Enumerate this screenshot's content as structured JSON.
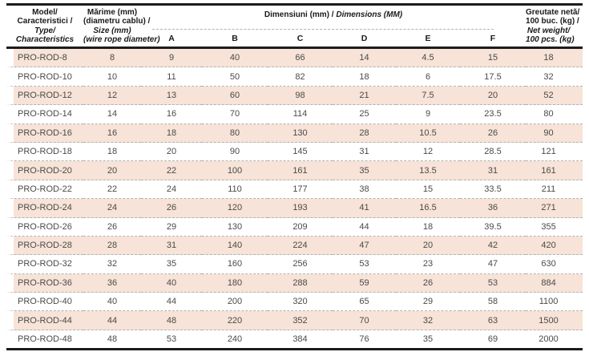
{
  "table": {
    "headers": {
      "model": {
        "l1": "Model/",
        "l2": "Caracteristici /",
        "l3": "Type/",
        "l4": "Characteristics"
      },
      "size": {
        "l1": "Mărime (mm)",
        "l2": "(diametru cablu) /",
        "l3": "Size (mm)",
        "l4": "(wire rope diameter)"
      },
      "dimensions": {
        "ro": "Dimensiuni (mm) / ",
        "en": "Dimensions (MM)"
      },
      "weight": {
        "l1": "Greutate netă/",
        "l2": "100 buc. (kg) /",
        "l3": "Net weight/",
        "l4": "100 pcs. (kg)"
      },
      "sub_columns": [
        "A",
        "B",
        "C",
        "D",
        "E",
        "F"
      ]
    },
    "rows": [
      [
        "PRO-ROD-8",
        "8",
        "9",
        "40",
        "66",
        "14",
        "4.5",
        "15",
        "18"
      ],
      [
        "PRO-ROD-10",
        "10",
        "11",
        "50",
        "82",
        "18",
        "6",
        "17.5",
        "32"
      ],
      [
        "PRO-ROD-12",
        "12",
        "13",
        "60",
        "98",
        "21",
        "7.5",
        "20",
        "52"
      ],
      [
        "PRO-ROD-14",
        "14",
        "16",
        "70",
        "114",
        "25",
        "9",
        "23.5",
        "80"
      ],
      [
        "PRO-ROD-16",
        "16",
        "18",
        "80",
        "130",
        "28",
        "10.5",
        "26",
        "90"
      ],
      [
        "PRO-ROD-18",
        "18",
        "20",
        "90",
        "145",
        "31",
        "12",
        "28.5",
        "121"
      ],
      [
        "PRO-ROD-20",
        "20",
        "22",
        "100",
        "161",
        "35",
        "13.5",
        "31",
        "161"
      ],
      [
        "PRO-ROD-22",
        "22",
        "24",
        "110",
        "177",
        "38",
        "15",
        "33.5",
        "211"
      ],
      [
        "PRO-ROD-24",
        "24",
        "26",
        "120",
        "193",
        "41",
        "16.5",
        "36",
        "271"
      ],
      [
        "PRO-ROD-26",
        "26",
        "29",
        "130",
        "209",
        "44",
        "18",
        "39.5",
        "355"
      ],
      [
        "PRO-ROD-28",
        "28",
        "31",
        "140",
        "224",
        "47",
        "20",
        "42",
        "420"
      ],
      [
        "PRO-ROD-32",
        "32",
        "35",
        "160",
        "256",
        "53",
        "23",
        "47",
        "630"
      ],
      [
        "PRO-ROD-36",
        "36",
        "40",
        "180",
        "288",
        "59",
        "26",
        "53",
        "884"
      ],
      [
        "PRO-ROD-40",
        "40",
        "44",
        "200",
        "320",
        "65",
        "29",
        "58",
        "1100"
      ],
      [
        "PRO-ROD-44",
        "44",
        "48",
        "220",
        "352",
        "70",
        "32",
        "63",
        "1500"
      ],
      [
        "PRO-ROD-48",
        "48",
        "53",
        "240",
        "384",
        "76",
        "35",
        "69",
        "2000"
      ]
    ],
    "colors": {
      "stripe": "#f7e3d7",
      "border": "#1c1c1c",
      "dash": "#b3b3b3",
      "text": "#4a4a4a",
      "header_text": "#1a1a1a"
    }
  }
}
